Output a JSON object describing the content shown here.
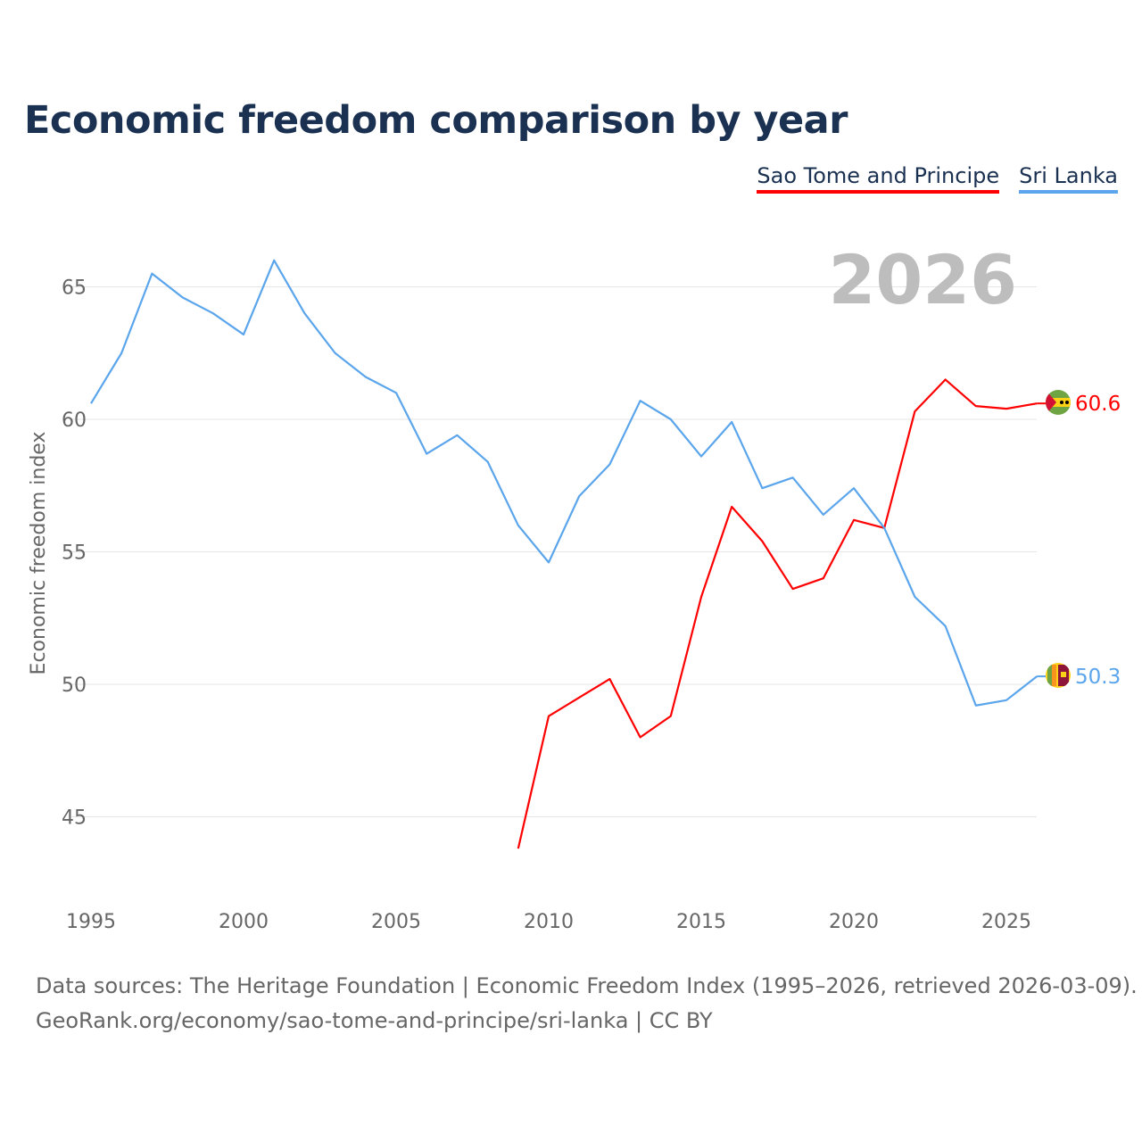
{
  "title": "Economic freedom comparison by year",
  "legend": [
    {
      "label": "Sao Tome and Principe",
      "color": "#ff0000"
    },
    {
      "label": "Sri Lanka",
      "color": "#5aa5ec"
    }
  ],
  "source": {
    "line1": "Data sources: The Heritage Foundation | Economic Freedom Index (1995–2026, retrieved 2026-03-09).",
    "line2": "GeoRank.org/economy/sao-tome-and-principe/sri-lanka | CC BY"
  },
  "chart_data": {
    "type": "line",
    "title": "Economic freedom comparison by year",
    "ylabel": "Economic freedom index",
    "xlabel": "",
    "year_watermark": "2026",
    "xlim": [
      1995,
      2026
    ],
    "ylim": [
      42,
      67.5
    ],
    "xticks": [
      "1995",
      "2000",
      "2005",
      "2010",
      "2015",
      "2020",
      "2025"
    ],
    "yticks": [
      "45",
      "50",
      "55",
      "60",
      "65"
    ],
    "grid": true,
    "series": [
      {
        "name": "Sao Tome and Principe",
        "color": "#ff0000",
        "end_label": "60.6",
        "x": [
          2009,
          2010,
          2011,
          2012,
          2013,
          2014,
          2015,
          2016,
          2017,
          2018,
          2019,
          2020,
          2021,
          2022,
          2023,
          2024,
          2025,
          2026
        ],
        "values": [
          43.8,
          48.8,
          49.5,
          50.2,
          48.0,
          48.8,
          53.3,
          56.7,
          55.4,
          53.6,
          54.0,
          56.2,
          55.9,
          60.3,
          61.5,
          60.5,
          60.4,
          60.6
        ]
      },
      {
        "name": "Sri Lanka",
        "color": "#5aa5ec",
        "end_label": "50.3",
        "x": [
          1995,
          1996,
          1997,
          1998,
          1999,
          2000,
          2001,
          2002,
          2003,
          2004,
          2005,
          2006,
          2007,
          2008,
          2009,
          2010,
          2011,
          2012,
          2013,
          2014,
          2015,
          2016,
          2017,
          2018,
          2019,
          2020,
          2021,
          2022,
          2023,
          2024,
          2025,
          2026
        ],
        "values": [
          60.6,
          62.5,
          65.5,
          64.6,
          64.0,
          63.2,
          66.0,
          64.0,
          62.5,
          61.6,
          61.0,
          58.7,
          59.4,
          58.4,
          56.0,
          54.6,
          57.1,
          58.3,
          60.7,
          60.0,
          58.6,
          59.9,
          57.4,
          57.8,
          56.4,
          57.4,
          55.9,
          53.3,
          52.2,
          49.2,
          49.4,
          50.3
        ]
      }
    ]
  }
}
